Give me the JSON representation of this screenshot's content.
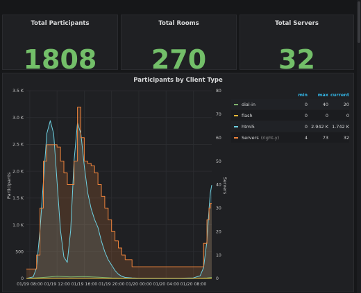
{
  "stats": [
    {
      "title": "Total Participants",
      "value": "1808"
    },
    {
      "title": "Total Rooms",
      "value": "270"
    },
    {
      "title": "Total Servers",
      "value": "32"
    }
  ],
  "graph": {
    "title": "Participants by Client Type",
    "legend_headers": {
      "min": "min",
      "max": "max",
      "current": "current"
    },
    "legend": [
      {
        "name": "dial-in",
        "hint": "",
        "min": "0",
        "max": "40",
        "current": "20",
        "color": "#7eb26d"
      },
      {
        "name": "flash",
        "hint": "",
        "min": "0",
        "max": "0",
        "current": "0",
        "color": "#eab839"
      },
      {
        "name": "html5",
        "hint": "",
        "min": "0",
        "max": "2.942 K",
        "current": "1.742 K",
        "color": "#6ed0e0"
      },
      {
        "name": "Servers",
        "hint": "(right-y)",
        "min": "4",
        "max": "73",
        "current": "32",
        "color": "#ef843c"
      }
    ]
  },
  "chart_data": {
    "type": "line",
    "ylabel": "Participants",
    "ylabel_right": "Servers",
    "ylim": [
      0,
      3500
    ],
    "ylim_right": [
      0,
      80
    ],
    "y_ticks": [
      "0",
      "500",
      "1.0 K",
      "1.5 K",
      "2.0 K",
      "2.5 K",
      "3.0 K",
      "3.5 K"
    ],
    "y_right_ticks": [
      "0",
      "10",
      "20",
      "30",
      "40",
      "50",
      "60",
      "70",
      "80"
    ],
    "x_ticks": [
      "01/19 08:00",
      "01/19 12:00",
      "01/19 16:00",
      "01/19 20:00",
      "01/20 00:00",
      "01/20 04:00",
      "01/20 08:00"
    ],
    "x_ticks_hours": [
      0,
      4,
      8,
      12,
      16,
      20,
      24
    ],
    "x_range_hours": [
      -0.5,
      26.7
    ],
    "series": [
      {
        "name": "html5",
        "axis": "left",
        "color": "#6ed0e0",
        "x": [
          -0.5,
          0.5,
          1,
          1.5,
          2,
          2.5,
          3,
          3.5,
          4,
          4.5,
          5,
          5.5,
          6,
          6.5,
          7,
          7.5,
          8,
          8.5,
          9,
          9.5,
          10,
          10.5,
          11,
          11.5,
          12,
          12.5,
          13,
          13.5,
          14,
          15,
          16,
          18,
          20,
          22,
          24,
          25,
          25.5,
          26,
          26.3,
          26.5,
          26.7
        ],
        "y": [
          0,
          30,
          200,
          900,
          1800,
          2700,
          2942,
          2700,
          1800,
          900,
          400,
          300,
          900,
          2200,
          2900,
          2700,
          2100,
          1600,
          1300,
          1100,
          950,
          700,
          500,
          350,
          250,
          150,
          80,
          40,
          20,
          10,
          5,
          5,
          5,
          5,
          10,
          50,
          200,
          700,
          1300,
          1600,
          1742
        ]
      },
      {
        "name": "Servers",
        "axis": "right",
        "color": "#ef843c",
        "x": [
          -0.5,
          1,
          1.5,
          2,
          2.5,
          3,
          3.5,
          4,
          4.5,
          5,
          5.5,
          6,
          6.5,
          7,
          7.5,
          8,
          8.5,
          9,
          9.5,
          10,
          10.5,
          11,
          11.5,
          12,
          12.5,
          13,
          13.5,
          14,
          15,
          16,
          18,
          20,
          22,
          24,
          25,
          25.5,
          26,
          26.3,
          26.5,
          26.7
        ],
        "y": [
          4,
          10,
          30,
          50,
          57,
          57,
          57,
          56,
          50,
          45,
          40,
          40,
          50,
          73,
          60,
          50,
          49,
          48,
          45,
          40,
          35,
          30,
          25,
          20,
          16,
          13,
          10,
          8,
          5,
          5,
          5,
          5,
          5,
          5,
          5,
          15,
          25,
          30,
          32,
          32
        ]
      },
      {
        "name": "dial-in",
        "axis": "left",
        "color": "#7eb26d",
        "x": [
          -0.5,
          2,
          4,
          6,
          8,
          10,
          12,
          14,
          16,
          20,
          24,
          26,
          26.7
        ],
        "y": [
          0,
          20,
          40,
          30,
          35,
          25,
          10,
          5,
          0,
          0,
          0,
          10,
          20
        ]
      },
      {
        "name": "flash",
        "axis": "left",
        "color": "#eab839",
        "x": [
          -0.5,
          26.7
        ],
        "y": [
          0,
          0
        ]
      }
    ]
  }
}
